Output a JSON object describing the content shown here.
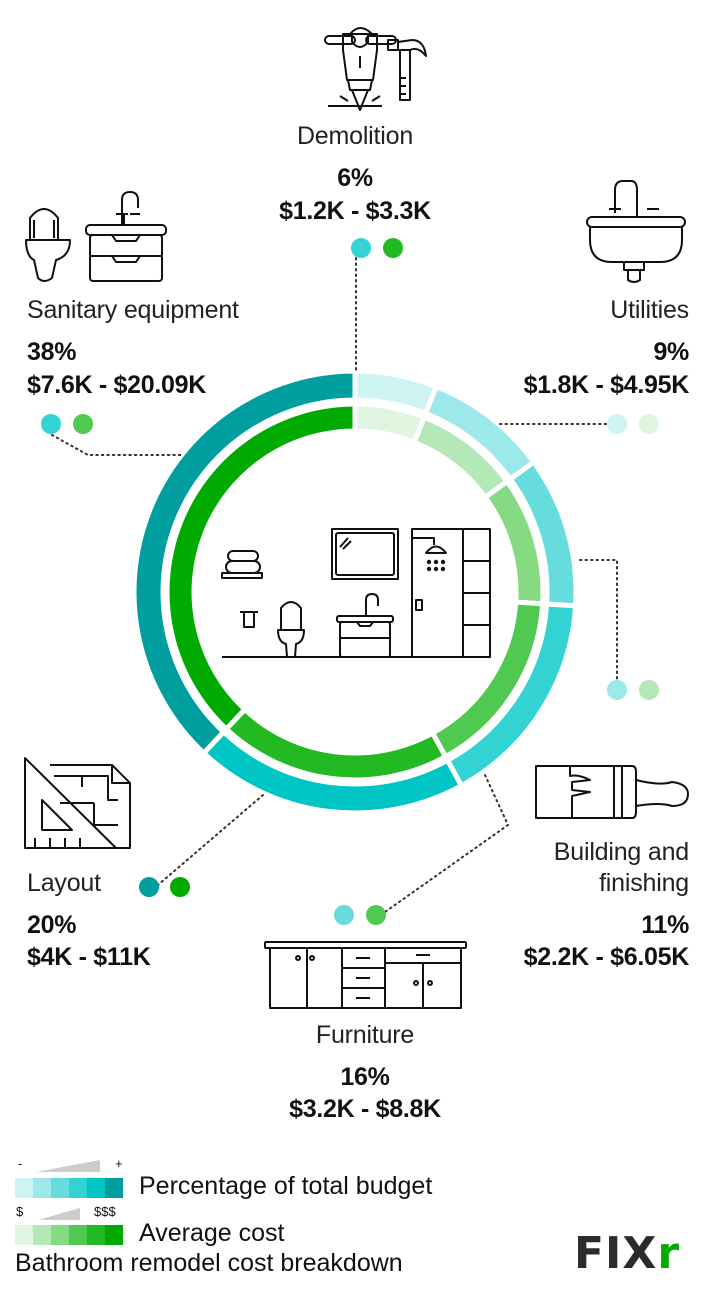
{
  "chart_data": {
    "type": "pie",
    "subtype": "double-ring donut",
    "title": "Bathroom remodel cost breakdown",
    "order": "clockwise from 12 o'clock",
    "categories": [
      "Demolition",
      "Utilities",
      "Building and finishing",
      "Furniture",
      "Layout",
      "Sanitary equipment"
    ],
    "series": [
      {
        "name": "Percentage of total budget",
        "ring": "outer",
        "values": [
          6,
          9,
          11,
          16,
          20,
          38
        ],
        "unit": "%"
      },
      {
        "name": "Average cost",
        "ring": "inner",
        "ranges": [
          "$1.2K - $3.3K",
          "$1.8K - $4.95K",
          "$2.2K - $6.05K",
          "$3.2K - $8.8K",
          "$4K - $11K",
          "$7.6K - $20.09K"
        ],
        "low_usd": [
          1200,
          1800,
          2200,
          3200,
          4000,
          7600
        ],
        "high_usd": [
          3300,
          4950,
          6050,
          8800,
          11000,
          20090
        ]
      }
    ],
    "legend": [
      {
        "label": "Percentage of total budget",
        "scale_min": "-",
        "scale_max": "+"
      },
      {
        "label": "Average cost",
        "scale_min": "$",
        "scale_max": "$$$"
      }
    ]
  },
  "segments": [
    {
      "name": "Demolition",
      "pct": "6%",
      "range": "$1.2K - $3.3K",
      "outer_color": "#cdf3f2",
      "inner_color": "#dff5e0"
    },
    {
      "name": "Utilities",
      "pct": "9%",
      "range": "$1.8K - $4.95K",
      "outer_color": "#9de8e8",
      "inner_color": "#b4e8b6"
    },
    {
      "name": "Building and finishing",
      "name_line1": "Building and",
      "name_line2": "finishing",
      "pct": "11%",
      "range": "$2.2K - $6.05K",
      "outer_color": "#66dcdc",
      "inner_color": "#86da84"
    },
    {
      "name": "Furniture",
      "pct": "16%",
      "range": "$3.2K - $8.8K",
      "outer_color": "#33d3d3",
      "inner_color": "#4fc94f"
    },
    {
      "name": "Layout",
      "pct": "20%",
      "range": "$4K - $11K",
      "outer_color": "#00c5c5",
      "inner_color": "#22b922"
    },
    {
      "name": "Sanitary equipment",
      "pct": "38%",
      "range": "$7.6K - $20.09K",
      "outer_color": "#009e9e",
      "inner_color": "#00aa00"
    }
  ],
  "legend": {
    "budget": {
      "label": "Percentage of total budget",
      "min": "-",
      "max": "+",
      "colors": [
        "#cdf3f2",
        "#9de8e8",
        "#66dcdc",
        "#33d3d3",
        "#00c5c5",
        "#009e9e"
      ]
    },
    "cost": {
      "label": "Average cost",
      "min": "$",
      "max": "$$$",
      "colors": [
        "#dff5e0",
        "#b4e8b6",
        "#86da84",
        "#4fc94f",
        "#22b922",
        "#00aa00"
      ]
    }
  },
  "footer": {
    "title": "Bathroom remodel cost breakdown"
  },
  "logo": {
    "text_main": "FIX",
    "text_accent": "r",
    "main_color": "#2b2b2b",
    "accent_color": "#00aa00"
  }
}
